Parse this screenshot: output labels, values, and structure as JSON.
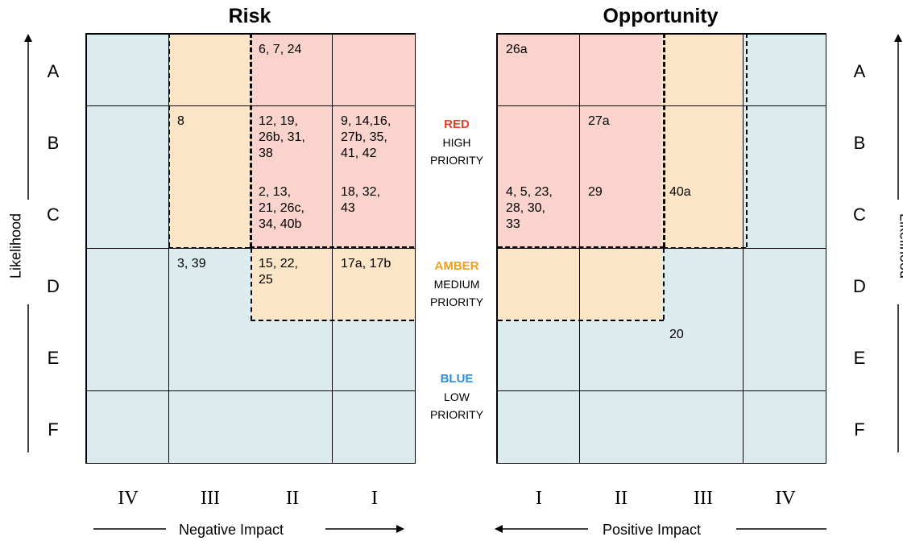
{
  "risk": {
    "title": "Risk",
    "cells": [
      [
        "",
        "",
        "6, 7, 24",
        ""
      ],
      [
        "",
        "8",
        "12, 19,\n26b, 31,\n38",
        "9, 14,16,\n27b, 35,\n41, 42"
      ],
      [
        "",
        "",
        "2, 13,\n21, 26c,\n34, 40b",
        "18, 32,\n43"
      ],
      [
        "",
        "3, 39",
        "15, 22,\n25",
        "17a, 17b"
      ],
      [
        "",
        "",
        "",
        ""
      ],
      [
        "",
        "",
        "",
        ""
      ]
    ],
    "colors": [
      [
        "blue",
        "amber",
        "red",
        "red"
      ],
      [
        "blue",
        "amber",
        "red",
        "red"
      ],
      [
        "blue",
        "amber",
        "red",
        "red"
      ],
      [
        "blue",
        "blue",
        "amber",
        "amber"
      ],
      [
        "blue",
        "blue",
        "blue",
        "blue"
      ],
      [
        "blue",
        "blue",
        "blue",
        "blue"
      ]
    ],
    "col_labels": [
      "IV",
      "III",
      "II",
      "I"
    ],
    "axis_label": "Negative Impact"
  },
  "opportunity": {
    "title": "Opportunity",
    "cells": [
      [
        "26a",
        "",
        "",
        ""
      ],
      [
        "",
        "27a",
        "",
        ""
      ],
      [
        "4, 5, 23,\n28, 30,\n33",
        "29",
        "40a",
        ""
      ],
      [
        "",
        "",
        "",
        ""
      ],
      [
        "",
        "",
        "20",
        ""
      ],
      [
        "",
        "",
        "",
        ""
      ]
    ],
    "colors": [
      [
        "red",
        "red",
        "amber",
        "blue"
      ],
      [
        "red",
        "red",
        "amber",
        "blue"
      ],
      [
        "red",
        "red",
        "amber",
        "blue"
      ],
      [
        "amber",
        "amber",
        "blue",
        "blue"
      ],
      [
        "blue",
        "blue",
        "blue",
        "blue"
      ],
      [
        "blue",
        "blue",
        "blue",
        "blue"
      ]
    ],
    "col_labels": [
      "I",
      "II",
      "III",
      "IV"
    ],
    "axis_label": "Positive Impact"
  },
  "row_labels": [
    "A",
    "B",
    "C",
    "D",
    "E",
    "F"
  ],
  "y_axis_label": "Likelihood",
  "legend": {
    "red": {
      "key": "RED",
      "line1": "HIGH",
      "line2": "PRIORITY"
    },
    "amber": {
      "key": "AMBER",
      "line1": "MEDIUM",
      "line2": "PRIORITY"
    },
    "blue": {
      "key": "BLUE",
      "line1": "LOW",
      "line2": "PRIORITY"
    }
  },
  "colors": {
    "red": "#fad3cc",
    "amber": "#fde5c8",
    "blue": "#dcebee",
    "red_text": "#e8402a",
    "amber_text": "#f0a01e",
    "blue_text": "#2e8fd6"
  }
}
